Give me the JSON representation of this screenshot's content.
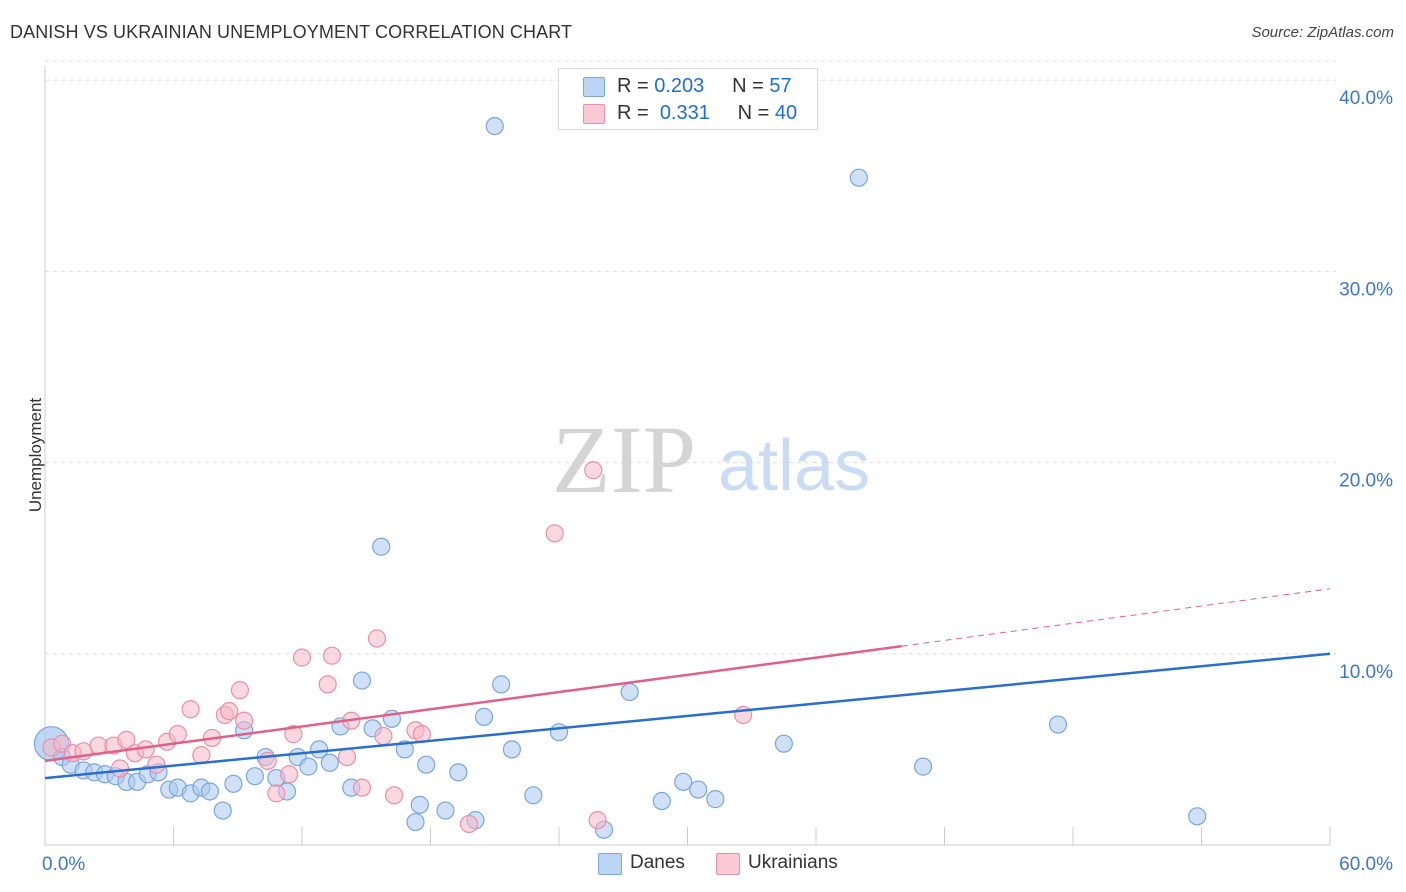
{
  "title": "DANISH VS UKRAINIAN UNEMPLOYMENT CORRELATION CHART",
  "source": "Source: ZipAtlas.com",
  "watermark": {
    "zip": "ZIP",
    "atlas": "atlas"
  },
  "legend_top": {
    "danes": {
      "r_label": "R =",
      "r_value": "0.203",
      "n_label": "N =",
      "n_value": "57"
    },
    "ukrainians": {
      "r_label": "R =",
      "r_value": "0.331",
      "n_label": "N =",
      "n_value": "40"
    }
  },
  "legend_bottom": {
    "danes": "Danes",
    "ukrainians": "Ukrainians"
  },
  "colors": {
    "danes_fill": "#a9c8f0",
    "danes_stroke": "#7aa6dd",
    "danes_line": "#2a6fcc",
    "ukr_fill": "#f5b8c8",
    "ukr_stroke": "#e890a8",
    "ukr_line": "#e0608a",
    "axis_label": "#3d77c9",
    "grid": "#dddddd"
  },
  "chart_data": {
    "type": "scatter",
    "title": "DANISH VS UKRAINIAN UNEMPLOYMENT CORRELATION CHART",
    "xlabel": "",
    "ylabel": "Unemployment",
    "xlim": [
      0,
      60
    ],
    "ylim": [
      0,
      42
    ],
    "x_tick_labels": [
      "0.0%",
      "60.0%"
    ],
    "y_ticks": [
      10,
      20,
      30,
      40
    ],
    "y_tick_labels": [
      "10.0%",
      "20.0%",
      "30.0%",
      "40.0%"
    ],
    "series": [
      {
        "name": "Danes",
        "trend": {
          "x": [
            0,
            60
          ],
          "y": [
            3.5,
            10.0
          ]
        },
        "points": [
          [
            0.3,
            5.3
          ],
          [
            0.8,
            4.6
          ],
          [
            1.2,
            4.2
          ],
          [
            1.8,
            3.9
          ],
          [
            2.3,
            3.8
          ],
          [
            2.8,
            3.7
          ],
          [
            3.3,
            3.6
          ],
          [
            3.8,
            3.3
          ],
          [
            4.3,
            3.3
          ],
          [
            4.8,
            3.7
          ],
          [
            5.3,
            3.8
          ],
          [
            5.8,
            2.9
          ],
          [
            6.2,
            3.0
          ],
          [
            6.8,
            2.7
          ],
          [
            7.3,
            3.0
          ],
          [
            7.7,
            2.8
          ],
          [
            8.3,
            1.8
          ],
          [
            8.8,
            3.2
          ],
          [
            9.3,
            6.0
          ],
          [
            9.8,
            3.6
          ],
          [
            10.3,
            4.6
          ],
          [
            10.8,
            3.5
          ],
          [
            11.3,
            2.8
          ],
          [
            11.8,
            4.6
          ],
          [
            12.3,
            4.1
          ],
          [
            12.8,
            5.0
          ],
          [
            13.3,
            4.3
          ],
          [
            13.8,
            6.2
          ],
          [
            14.3,
            3.0
          ],
          [
            14.8,
            8.6
          ],
          [
            15.3,
            6.1
          ],
          [
            15.7,
            15.6
          ],
          [
            16.2,
            6.6
          ],
          [
            16.8,
            5.0
          ],
          [
            17.3,
            1.2
          ],
          [
            17.5,
            2.1
          ],
          [
            17.8,
            4.2
          ],
          [
            18.7,
            1.8
          ],
          [
            19.3,
            3.8
          ],
          [
            20.1,
            1.3
          ],
          [
            20.5,
            6.7
          ],
          [
            21.0,
            37.6
          ],
          [
            21.3,
            8.4
          ],
          [
            21.8,
            5.0
          ],
          [
            22.8,
            2.6
          ],
          [
            24.0,
            5.9
          ],
          [
            26.1,
            0.8
          ],
          [
            27.3,
            8.0
          ],
          [
            28.8,
            2.3
          ],
          [
            29.8,
            3.3
          ],
          [
            30.5,
            2.9
          ],
          [
            31.3,
            2.4
          ],
          [
            34.5,
            5.3
          ],
          [
            38.0,
            34.9
          ],
          [
            41.0,
            4.1
          ],
          [
            47.3,
            6.3
          ],
          [
            53.8,
            1.5
          ]
        ]
      },
      {
        "name": "Ukrainians",
        "trend": {
          "x": [
            0,
            40
          ],
          "y": [
            4.4,
            10.4
          ]
        },
        "trend_dashed": {
          "x": [
            40,
            60
          ],
          "y": [
            10.4,
            13.4
          ]
        },
        "points": [
          [
            0.3,
            5.1
          ],
          [
            0.8,
            5.3
          ],
          [
            1.3,
            4.8
          ],
          [
            1.8,
            4.9
          ],
          [
            2.5,
            5.2
          ],
          [
            3.2,
            5.2
          ],
          [
            3.5,
            4.0
          ],
          [
            3.8,
            5.5
          ],
          [
            4.2,
            4.8
          ],
          [
            4.7,
            5.0
          ],
          [
            5.2,
            4.2
          ],
          [
            5.7,
            5.4
          ],
          [
            6.2,
            5.8
          ],
          [
            6.8,
            7.1
          ],
          [
            7.3,
            4.7
          ],
          [
            7.8,
            5.6
          ],
          [
            8.4,
            6.8
          ],
          [
            8.6,
            7.0
          ],
          [
            9.1,
            8.1
          ],
          [
            9.3,
            6.5
          ],
          [
            10.4,
            4.4
          ],
          [
            10.8,
            2.7
          ],
          [
            11.4,
            3.7
          ],
          [
            11.6,
            5.8
          ],
          [
            12.0,
            9.8
          ],
          [
            13.2,
            8.4
          ],
          [
            13.4,
            9.9
          ],
          [
            14.1,
            4.6
          ],
          [
            14.3,
            6.5
          ],
          [
            14.8,
            3.0
          ],
          [
            15.5,
            10.8
          ],
          [
            15.8,
            5.7
          ],
          [
            16.3,
            2.6
          ],
          [
            17.3,
            6.0
          ],
          [
            17.6,
            5.8
          ],
          [
            19.8,
            1.1
          ],
          [
            23.8,
            16.3
          ],
          [
            25.6,
            19.6
          ],
          [
            25.8,
            1.3
          ],
          [
            32.6,
            6.8
          ]
        ]
      }
    ]
  }
}
